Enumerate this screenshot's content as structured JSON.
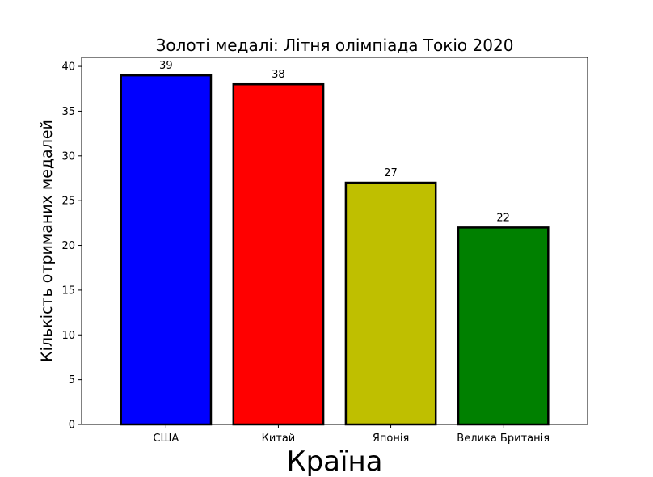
{
  "chart_data": {
    "type": "bar",
    "title": "Золоті медалі: Літня олімпіада Токіо 2020",
    "xlabel": "Країна",
    "ylabel": "Кількість отриманих медалей",
    "categories": [
      "США",
      "Китай",
      "Японія",
      "Велика Британія"
    ],
    "values": [
      39,
      38,
      27,
      22
    ],
    "colors": [
      "#0000ff",
      "#ff0000",
      "#bfbf00",
      "#008000"
    ],
    "edge_color": "#000000",
    "ylim": [
      0,
      41
    ],
    "yticks": [
      0,
      5,
      10,
      15,
      20,
      25,
      30,
      35,
      40
    ],
    "grid": false,
    "legend": "none"
  }
}
